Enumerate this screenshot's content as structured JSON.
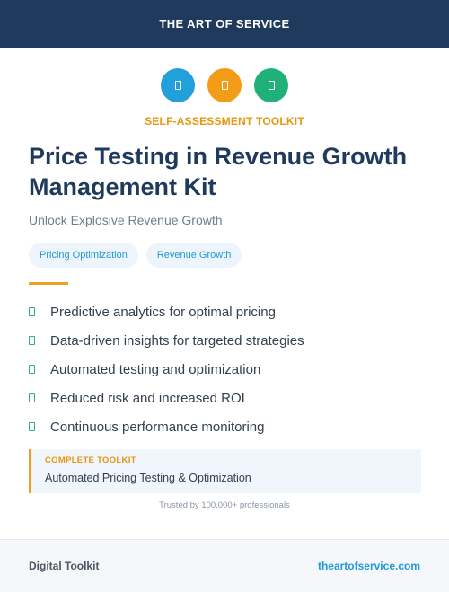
{
  "header": {
    "brand": "THE ART OF SERVICE"
  },
  "icons": [
    {
      "name": "icon-1",
      "color": "#22a0dc"
    },
    {
      "name": "icon-2",
      "color": "#f39c18"
    },
    {
      "name": "icon-3",
      "color": "#22b07a"
    }
  ],
  "kicker": "SELF-ASSESSMENT TOOLKIT",
  "title": "Price Testing in Revenue Growth Management Kit",
  "subtitle": "Unlock Explosive Revenue Growth",
  "tags": [
    "Pricing Optimization",
    "Revenue Growth"
  ],
  "features": [
    "Predictive analytics for optimal pricing",
    "Data-driven insights for targeted strategies",
    "Automated testing and optimization",
    "Reduced risk and increased ROI",
    "Continuous performance monitoring"
  ],
  "callout": {
    "label": "COMPLETE TOOLKIT",
    "text": "Automated Pricing Testing & Optimization"
  },
  "trusted": "Trusted by 100,000+ professionals",
  "footer": {
    "left": "Digital Toolkit",
    "right": "theartofservice.com"
  }
}
